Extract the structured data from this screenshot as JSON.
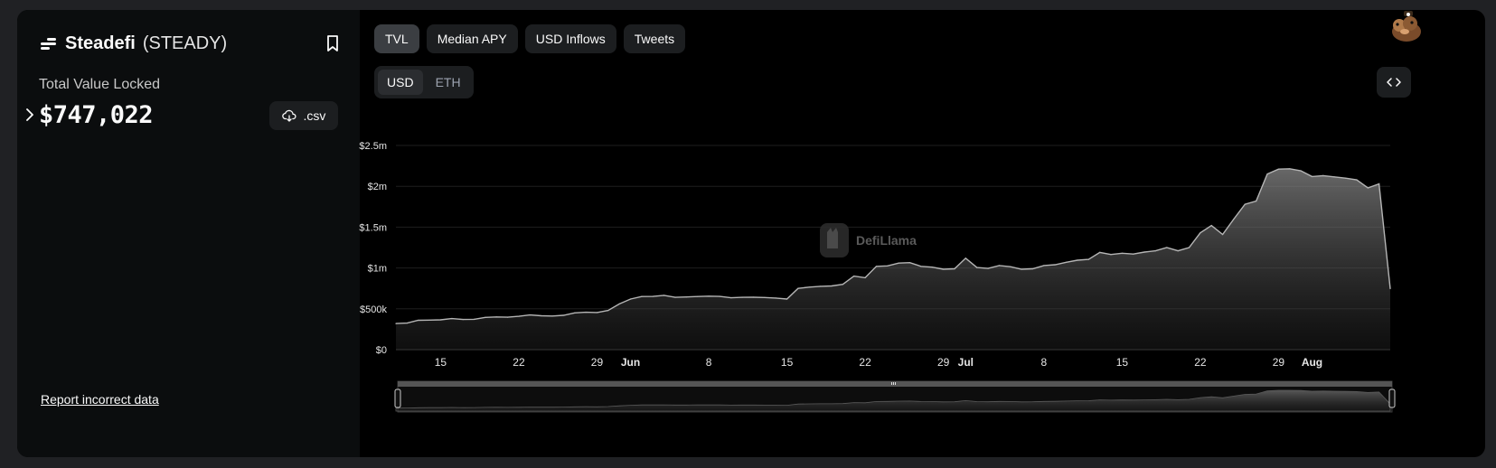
{
  "protocol": {
    "name": "Steadefi",
    "symbol": "(STEADY)"
  },
  "tvl": {
    "label": "Total Value Locked",
    "value": "$747,022"
  },
  "csv": {
    "label": ".csv"
  },
  "report": {
    "label": "Report incorrect data"
  },
  "tabs": [
    {
      "label": "TVL",
      "active": true
    },
    {
      "label": "Median APY",
      "active": false
    },
    {
      "label": "USD Inflows",
      "active": false
    },
    {
      "label": "Tweets",
      "active": false
    }
  ],
  "denominations": [
    {
      "label": "USD",
      "active": true
    },
    {
      "label": "ETH",
      "active": false
    }
  ],
  "watermark": "DefiLlama",
  "icons": {
    "protocol": "steadefi-logo-icon",
    "bookmark": "bookmark-icon",
    "expand": "chevron-right-icon",
    "csv": "cloud-download-icon",
    "embed": "code-brackets-icon",
    "avatar": "llama-avatar-icon"
  },
  "colors": {
    "background": "#000000",
    "panel": "#0b0d0e",
    "button": "#1c1e20",
    "button_active": "#3b3e42",
    "line": "#b5b5b5"
  },
  "chart_data": {
    "type": "area",
    "series": [
      {
        "values": [
          320000,
          325000,
          360000,
          362000,
          365000,
          380000,
          370000,
          372000,
          395000,
          400000,
          397000,
          408000,
          425000,
          415000,
          412000,
          420000,
          450000,
          458000,
          455000,
          480000,
          560000,
          620000,
          650000,
          652000,
          665000,
          640000,
          645000,
          650000,
          655000,
          652000,
          635000,
          640000,
          642000,
          638000,
          632000,
          620000,
          750000,
          765000,
          775000,
          780000,
          800000,
          900000,
          880000,
          1020000,
          1025000,
          1060000,
          1065000,
          1020000,
          1010000,
          985000,
          990000,
          1120000,
          1005000,
          995000,
          1030000,
          1015000,
          985000,
          990000,
          1030000,
          1040000,
          1070000,
          1095000,
          1105000,
          1190000,
          1165000,
          1180000,
          1170000,
          1195000,
          1210000,
          1250000,
          1210000,
          1250000,
          1430000,
          1520000,
          1410000,
          1600000,
          1780000,
          1820000,
          2150000,
          2210000,
          2215000,
          2190000,
          2120000,
          2130000,
          2115000,
          2100000,
          2080000,
          1980000,
          2030000,
          747022
        ]
      }
    ],
    "x_start": "2023-05-11",
    "x_end": "2023-08-08",
    "x_ticks": [
      {
        "label": "15",
        "date": "2023-05-15",
        "bold": false
      },
      {
        "label": "22",
        "date": "2023-05-22",
        "bold": false
      },
      {
        "label": "29",
        "date": "2023-05-29",
        "bold": false
      },
      {
        "label": "Jun",
        "date": "2023-06-01",
        "bold": true
      },
      {
        "label": "8",
        "date": "2023-06-08",
        "bold": false
      },
      {
        "label": "15",
        "date": "2023-06-15",
        "bold": false
      },
      {
        "label": "22",
        "date": "2023-06-22",
        "bold": false
      },
      {
        "label": "29",
        "date": "2023-06-29",
        "bold": false
      },
      {
        "label": "Jul",
        "date": "2023-07-01",
        "bold": true
      },
      {
        "label": "8",
        "date": "2023-07-08",
        "bold": false
      },
      {
        "label": "15",
        "date": "2023-07-15",
        "bold": false
      },
      {
        "label": "22",
        "date": "2023-07-22",
        "bold": false
      },
      {
        "label": "29",
        "date": "2023-07-29",
        "bold": false
      },
      {
        "label": "Aug",
        "date": "2023-08-01",
        "bold": true
      }
    ],
    "y_ticks": [
      {
        "label": "$0",
        "value": 0
      },
      {
        "label": "$500k",
        "value": 500000
      },
      {
        "label": "$1m",
        "value": 1000000
      },
      {
        "label": "$1.5m",
        "value": 1500000
      },
      {
        "label": "$2m",
        "value": 2000000
      },
      {
        "label": "$2.5m",
        "value": 2500000
      }
    ],
    "ylim": [
      0,
      2500000
    ],
    "grid": true,
    "legend": "none"
  }
}
